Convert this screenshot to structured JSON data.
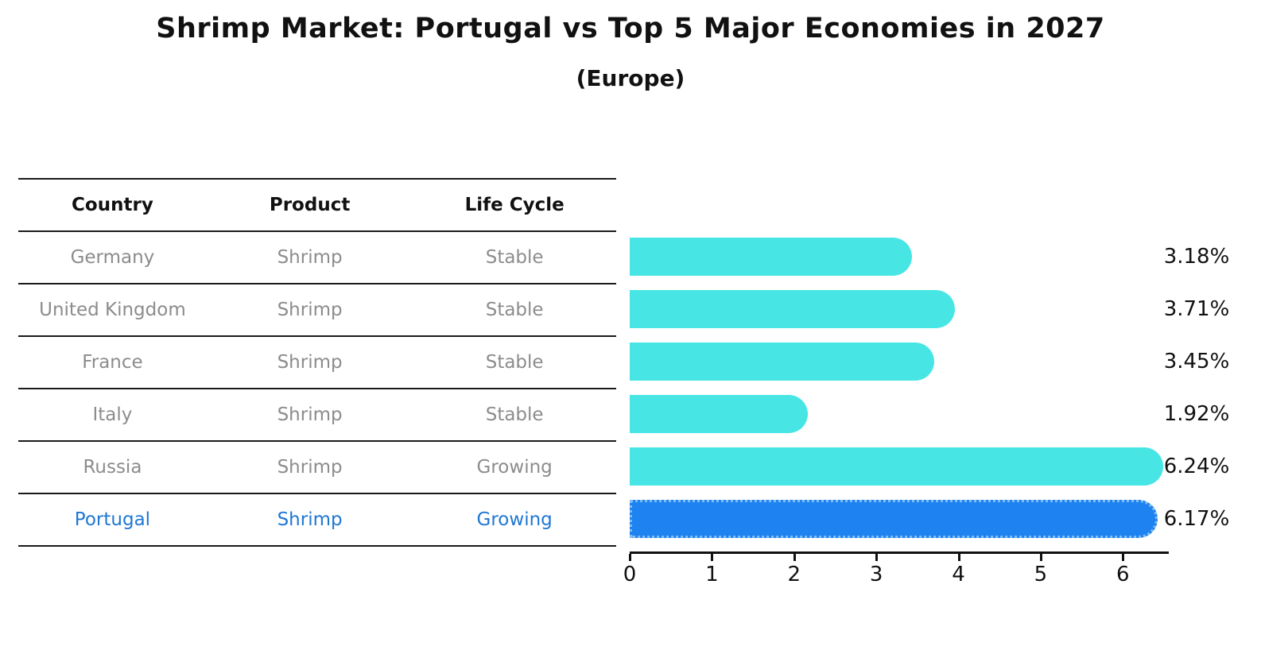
{
  "title": "Shrimp Market: Portugal vs Top 5 Major Economies in 2027",
  "subtitle": "(Europe)",
  "table": {
    "columns": [
      "Country",
      "Product",
      "Life Cycle"
    ]
  },
  "chart_data": {
    "type": "bar",
    "orientation": "horizontal",
    "title": "Shrimp Market: Portugal vs Top 5 Major Economies in 2027",
    "subtitle": "(Europe)",
    "xlabel": "",
    "ylabel": "",
    "xlim": [
      0,
      6.5
    ],
    "x_ticks": [
      0,
      1,
      2,
      3,
      4,
      5,
      6
    ],
    "grid": false,
    "legend": false,
    "rows": [
      {
        "country": "Germany",
        "product": "Shrimp",
        "life_cycle": "Stable",
        "value": 3.18,
        "value_label": "3.18%",
        "highlight": false
      },
      {
        "country": "United Kingdom",
        "product": "Shrimp",
        "life_cycle": "Stable",
        "value": 3.71,
        "value_label": "3.71%",
        "highlight": false
      },
      {
        "country": "France",
        "product": "Shrimp",
        "life_cycle": "Stable",
        "value": 3.45,
        "value_label": "3.45%",
        "highlight": false
      },
      {
        "country": "Italy",
        "product": "Shrimp",
        "life_cycle": "Stable",
        "value": 1.92,
        "value_label": "1.92%",
        "highlight": false
      },
      {
        "country": "Russia",
        "product": "Shrimp",
        "life_cycle": "Growing",
        "value": 6.24,
        "value_label": "6.24%",
        "highlight": false
      },
      {
        "country": "Portugal",
        "product": "Shrimp",
        "life_cycle": "Growing",
        "value": 6.17,
        "value_label": "6.17%",
        "highlight": true
      }
    ],
    "colors": {
      "bar": "#48E5E5",
      "highlight_bar": "#1E82F0",
      "highlight_bar_border": "#7FBDF6",
      "row_text": "#8C8C8C",
      "highlight_text": "#1F77D4",
      "header_text": "#111111",
      "axis": "#111111"
    }
  }
}
